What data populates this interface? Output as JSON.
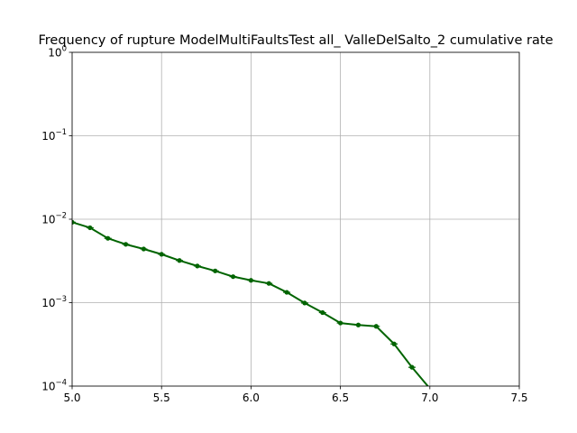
{
  "chart_data": {
    "type": "line",
    "title": "Frequency of rupture ModelMultiFaultsTest all_ ValleDelSalto_2 cumulative rate",
    "xlabel": "",
    "ylabel": "",
    "xlim": [
      5.0,
      7.5
    ],
    "ylim": [
      0.0001,
      1
    ],
    "yscale": "log",
    "grid": true,
    "x_ticks": [
      "5.0",
      "5.5",
      "6.0",
      "6.5",
      "7.0",
      "7.5"
    ],
    "y_ticks": [
      {
        "base": "10",
        "exp": "0"
      },
      {
        "base": "10",
        "exp": "−1"
      },
      {
        "base": "10",
        "exp": "−2"
      },
      {
        "base": "10",
        "exp": "−3"
      },
      {
        "base": "10",
        "exp": "−4"
      }
    ],
    "series_color": "#006400",
    "series": [
      {
        "x": [
          5.0,
          5.1,
          5.2,
          5.3,
          5.4,
          5.5,
          5.6,
          5.7,
          5.8,
          5.9,
          6.0,
          6.1,
          6.2,
          6.3,
          6.4,
          6.5,
          6.6,
          6.7,
          6.8,
          6.9,
          7.0
        ],
        "values": [
          0.0092,
          0.0079,
          0.0059,
          0.005,
          0.0044,
          0.0038,
          0.0032,
          0.00275,
          0.0024,
          0.00205,
          0.00185,
          0.0017,
          0.00133,
          0.00099,
          0.00076,
          0.00057,
          0.00054,
          0.00052,
          0.00032,
          0.000168,
          9.35e-05
        ]
      }
    ]
  }
}
